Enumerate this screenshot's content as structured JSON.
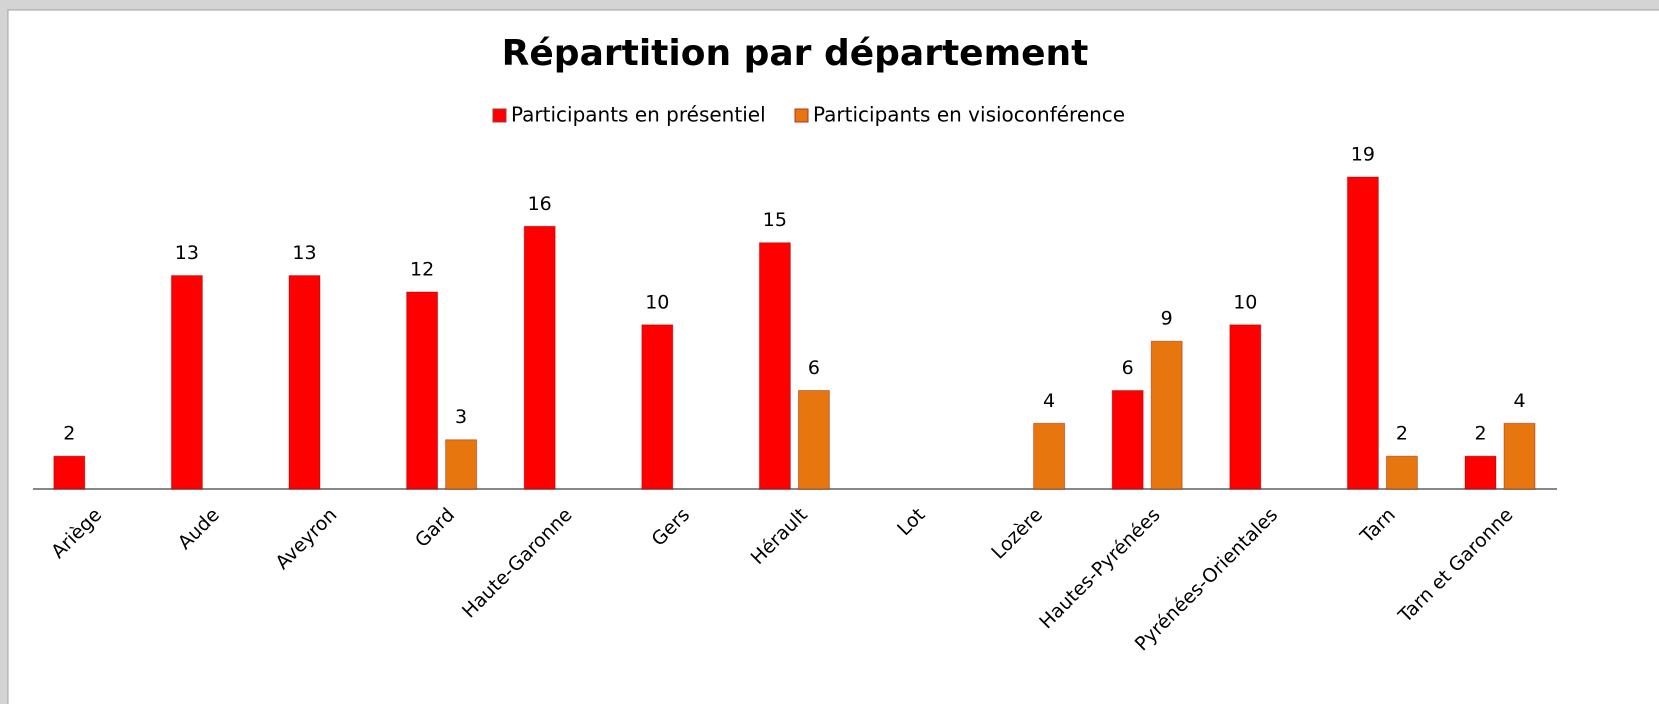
{
  "chart_data": {
    "type": "bar",
    "title": "Répartition par département",
    "categories": [
      "Ariège",
      "Aude",
      "Aveyron",
      "Gard",
      "Haute-Garonne",
      "Gers",
      "Hérault",
      "Lot",
      "Lozère",
      "Hautes-Pyrénées",
      "Pyrénées-Orientales",
      "Tarn",
      "Tarn et Garonne"
    ],
    "series": [
      {
        "name": "Participants en présentiel",
        "color": "#ff0000",
        "values": [
          2,
          13,
          13,
          12,
          16,
          10,
          15,
          null,
          null,
          6,
          10,
          19,
          2
        ]
      },
      {
        "name": "Participants en visioconférence",
        "color": "#e8760e",
        "values": [
          null,
          null,
          null,
          3,
          null,
          null,
          6,
          null,
          4,
          9,
          null,
          2,
          4
        ]
      }
    ],
    "legend": "top"
  }
}
